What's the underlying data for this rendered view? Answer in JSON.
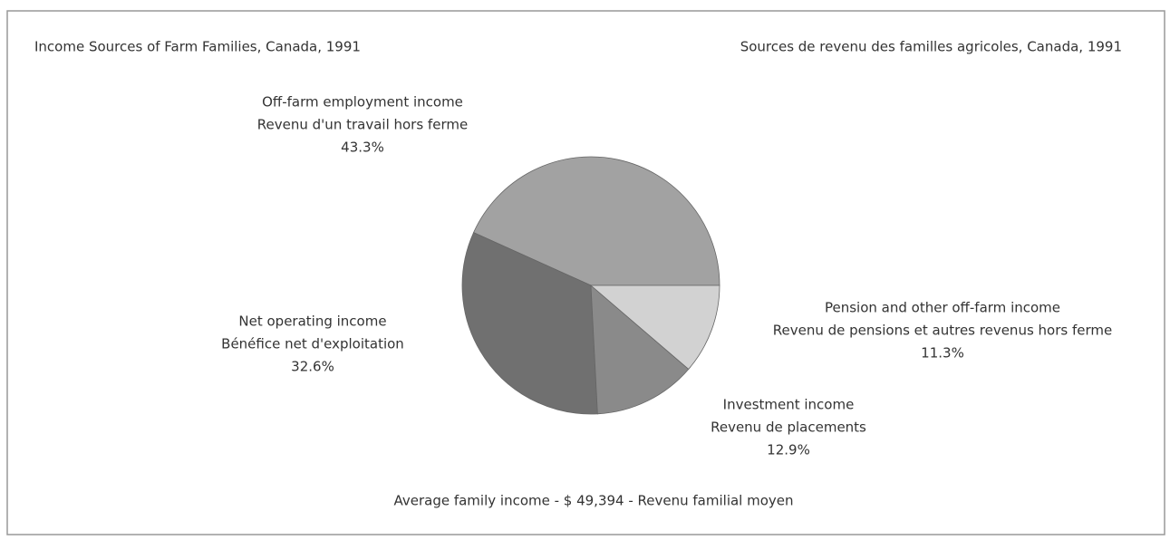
{
  "chart_data": {
    "type": "pie",
    "title": "Income Sources of Farm Families, Canada, 1991",
    "subtitle": "Sources de revenu des familles agricoles, Canada, 1991",
    "categories": [
      "Off-farm employment income",
      "Net operating income",
      "Investment income",
      "Pension and other off-farm income"
    ],
    "categories_fr": [
      "Revenu d'un travail hors ferme",
      "Bénéfice net d'exploitation",
      "Revenu de placements",
      "Revenu de pensions et autres revenus hors ferme"
    ],
    "values": [
      43.3,
      32.6,
      12.9,
      11.3
    ],
    "value_labels": [
      "43.3%",
      "32.6%",
      "12.9%",
      "11.3%"
    ],
    "colors": [
      "#a2a2a2",
      "#707070",
      "#8a8a8a",
      "#d2d2d2"
    ],
    "annotation": "Average family income - $ 49,394 - Revenu familial moyen"
  }
}
